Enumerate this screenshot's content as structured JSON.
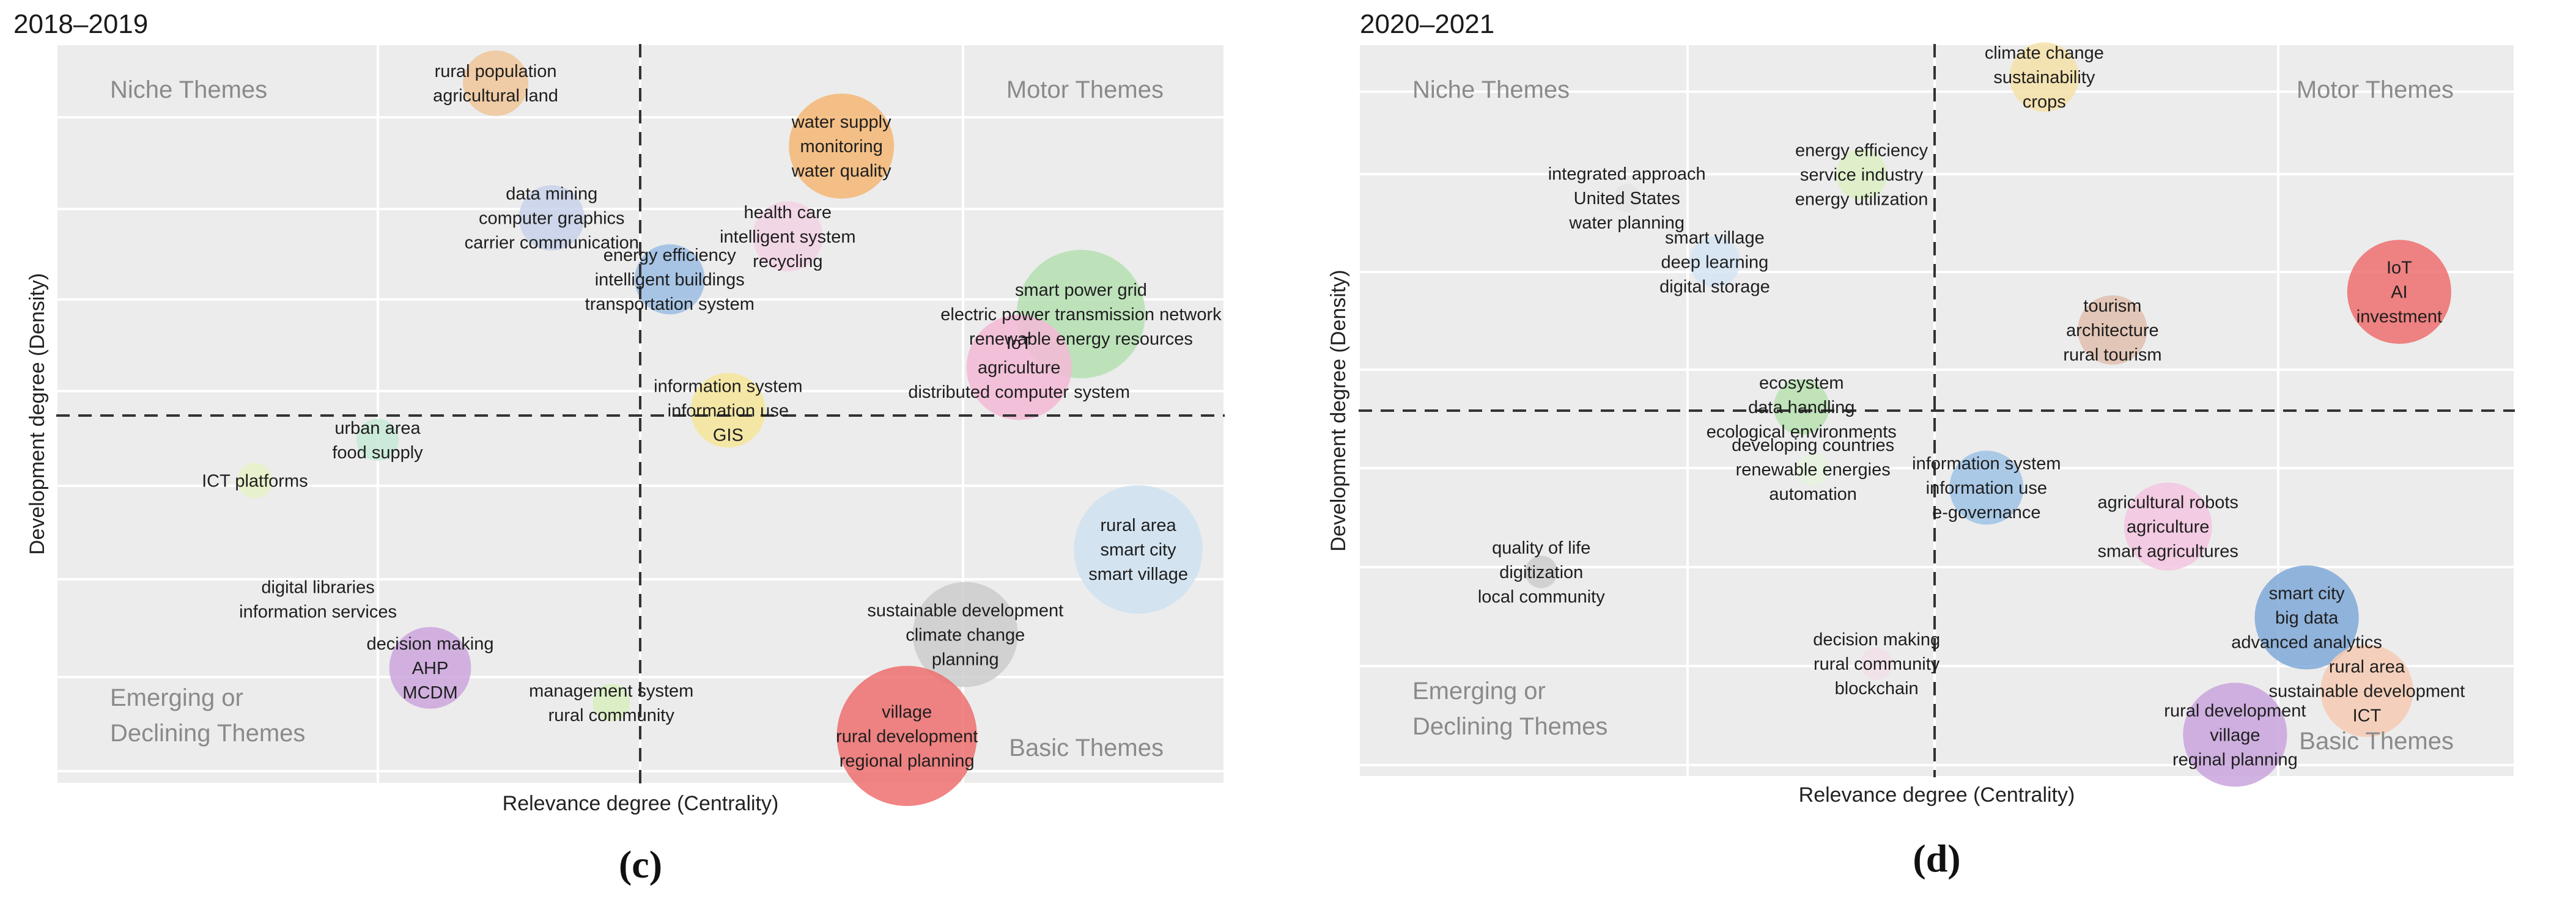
{
  "chart_data": [
    {
      "type": "scatter",
      "title": "2018–2019",
      "panel_label": "(c)",
      "xlabel": "Relevance degree (Centrality)",
      "ylabel": "Development degree (Density)",
      "grid": true,
      "quadrants": {
        "top_left": "Niche Themes",
        "top_right": "Motor Themes",
        "bottom_left": "Emerging or Declining Themes",
        "bottom_right": "Basic Themes"
      },
      "clusters": [
        {
          "labels": [
            "rural population",
            "agricultural land"
          ],
          "x": 0.376,
          "y": 0.947,
          "r": 0.028,
          "color": "#f0c79a"
        },
        {
          "labels": [
            "water supply",
            "monitoring",
            "water quality"
          ],
          "x": 0.672,
          "y": 0.862,
          "r": 0.045,
          "color": "#f5b774"
        },
        {
          "labels": [
            "data mining",
            "computer graphics",
            "carrier communication"
          ],
          "x": 0.424,
          "y": 0.765,
          "r": 0.028,
          "color": "#c8d2ea"
        },
        {
          "labels": [
            "health care",
            "intelligent system",
            "recycling"
          ],
          "x": 0.626,
          "y": 0.74,
          "r": 0.03,
          "color": "#f2d2e4"
        },
        {
          "labels": [
            "energy efficiency",
            "intelligent buildings",
            "transportation system"
          ],
          "x": 0.525,
          "y": 0.682,
          "r": 0.03,
          "color": "#9bbde3"
        },
        {
          "labels": [
            "smart power grid",
            "electric power transmission network",
            "renewable energy resources"
          ],
          "x": 0.877,
          "y": 0.635,
          "r": 0.055,
          "color": "#b5e0b2"
        },
        {
          "labels": [
            "IoT",
            "agriculture",
            "distributed computer system"
          ],
          "x": 0.824,
          "y": 0.563,
          "r": 0.045,
          "color": "#f4b8d6"
        },
        {
          "labels": [
            "information system",
            "information use",
            "GIS"
          ],
          "x": 0.575,
          "y": 0.505,
          "r": 0.032,
          "color": "#f6e69a"
        },
        {
          "labels": [
            "urban area",
            "food supply"
          ],
          "x": 0.275,
          "y": 0.465,
          "r": 0.018,
          "color": "#c6ead6"
        },
        {
          "labels": [
            "ICT platforms"
          ],
          "x": 0.17,
          "y": 0.41,
          "r": 0.015,
          "color": "#e6f2c5"
        },
        {
          "labels": [
            "rural area",
            "smart city",
            "smart village"
          ],
          "x": 0.926,
          "y": 0.317,
          "r": 0.055,
          "color": "#cfe2f1"
        },
        {
          "labels": [
            "digital libraries",
            "information services"
          ],
          "x": 0.224,
          "y": 0.25,
          "r": 0.015,
          "color": "#ececec"
        },
        {
          "labels": [
            "sustainable development",
            "climate change",
            "planning"
          ],
          "x": 0.778,
          "y": 0.202,
          "r": 0.045,
          "color": "#cccccc"
        },
        {
          "labels": [
            "decision making",
            "AHP",
            "MCDM"
          ],
          "x": 0.32,
          "y": 0.157,
          "r": 0.035,
          "color": "#cca6de"
        },
        {
          "labels": [
            "management system",
            "rural community"
          ],
          "x": 0.475,
          "y": 0.11,
          "r": 0.016,
          "color": "#d9efc0"
        },
        {
          "labels": [
            "village",
            "rural development",
            "regional planning"
          ],
          "x": 0.728,
          "y": 0.065,
          "r": 0.06,
          "color": "#ef6e6e"
        }
      ]
    },
    {
      "type": "scatter",
      "title": "2020–2021",
      "panel_label": "(d)",
      "xlabel": "Relevance degree (Centrality)",
      "ylabel": "Development degree (Density)",
      "grid": true,
      "quadrants": {
        "top_left": "Niche Themes",
        "top_right": "Motor Themes",
        "bottom_left": "Emerging or Declining Themes",
        "bottom_right": "Basic Themes"
      },
      "clusters": [
        {
          "labels": [
            "climate change",
            "sustainability",
            "crops"
          ],
          "x": 0.593,
          "y": 0.955,
          "r": 0.03,
          "color": "#f6e2a8"
        },
        {
          "labels": [
            "integrated approach",
            "United States",
            "water planning"
          ],
          "x": 0.232,
          "y": 0.79,
          "r": 0.012,
          "color": "#e5e5e5"
        },
        {
          "labels": [
            "energy efficiency",
            "service industry",
            "energy utilization"
          ],
          "x": 0.435,
          "y": 0.822,
          "r": 0.022,
          "color": "#ddf0c4"
        },
        {
          "labels": [
            "smart village",
            "deep learning",
            "digital storage"
          ],
          "x": 0.308,
          "y": 0.703,
          "r": 0.022,
          "color": "#d5e5f4"
        },
        {
          "labels": [
            "IoT",
            "AI",
            "investment"
          ],
          "x": 0.9,
          "y": 0.662,
          "r": 0.045,
          "color": "#ef6e6e"
        },
        {
          "labels": [
            "tourism",
            "architecture",
            "rural tourism"
          ],
          "x": 0.652,
          "y": 0.61,
          "r": 0.03,
          "color": "#e0bfae"
        },
        {
          "labels": [
            "ecosystem",
            "data handling",
            "ecological environments"
          ],
          "x": 0.383,
          "y": 0.505,
          "r": 0.024,
          "color": "#b9e2b1"
        },
        {
          "labels": [
            "developing countries",
            "renewable energies",
            "automation"
          ],
          "x": 0.393,
          "y": 0.42,
          "r": 0.014,
          "color": "#e8f3de"
        },
        {
          "labels": [
            "information system",
            "information use",
            "e-governance"
          ],
          "x": 0.543,
          "y": 0.395,
          "r": 0.032,
          "color": "#9fc3e6"
        },
        {
          "labels": [
            "agricultural robots",
            "agriculture",
            "smart agricultures"
          ],
          "x": 0.7,
          "y": 0.342,
          "r": 0.038,
          "color": "#f4c6e0"
        },
        {
          "labels": [
            "quality of life",
            "digitization",
            "local community"
          ],
          "x": 0.158,
          "y": 0.28,
          "r": 0.014,
          "color": "#cccccc"
        },
        {
          "labels": [
            "smart city",
            "big data",
            "advanced analytics"
          ],
          "x": 0.82,
          "y": 0.218,
          "r": 0.045,
          "color": "#7fa9d8"
        },
        {
          "labels": [
            "rural area",
            "sustainable development",
            "ICT"
          ],
          "x": 0.872,
          "y": 0.118,
          "r": 0.04,
          "color": "#f6cbb4"
        },
        {
          "labels": [
            "decision making",
            "rural community",
            "blockchain"
          ],
          "x": 0.448,
          "y": 0.155,
          "r": 0.014,
          "color": "#f2e0ea"
        },
        {
          "labels": [
            "rural development",
            "village",
            "reginal planning"
          ],
          "x": 0.758,
          "y": 0.058,
          "r": 0.045,
          "color": "#c9a5dd"
        }
      ]
    }
  ]
}
